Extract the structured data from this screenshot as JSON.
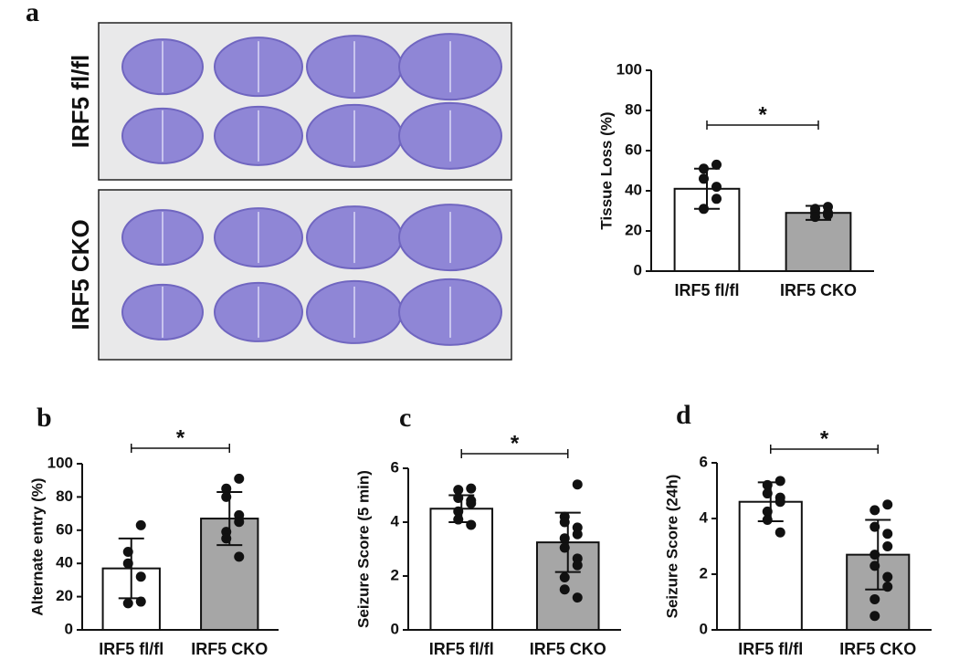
{
  "chart_data": [
    {
      "type": "bar",
      "panel": "a",
      "image_labels": [
        "IRF5 fl/fl",
        "IRF5 CKO"
      ],
      "ylabel": "Tissue Loss (%)",
      "categories": [
        "IRF5 fl/fl",
        "IRF5 CKO"
      ],
      "values": [
        41,
        29
      ],
      "errors": [
        10,
        3.5
      ],
      "points": [
        [
          53,
          51,
          46,
          42,
          36,
          31
        ],
        [
          32,
          31,
          29,
          29,
          28,
          27
        ]
      ],
      "colors": [
        "#ffffff",
        "#a6a6a6"
      ],
      "significance": "*",
      "ylim": [
        0,
        100
      ],
      "yticks": [
        0,
        20,
        40,
        60,
        80,
        100
      ]
    },
    {
      "type": "bar",
      "panel": "b",
      "ylabel": "Alternate entry (%)",
      "categories": [
        "IRF5 fl/fl",
        "IRF5 CKO"
      ],
      "values": [
        37,
        67
      ],
      "errors": [
        18,
        16
      ],
      "points": [
        [
          63,
          47,
          40,
          32,
          17,
          16
        ],
        [
          91,
          85,
          80,
          69,
          65,
          59,
          55,
          44
        ]
      ],
      "colors": [
        "#ffffff",
        "#a6a6a6"
      ],
      "significance": "*",
      "ylim": [
        0,
        100
      ],
      "yticks": [
        0,
        20,
        40,
        60,
        80,
        100
      ]
    },
    {
      "type": "bar",
      "panel": "c",
      "ylabel": "Seizure Score (5 min)",
      "categories": [
        "IRF5 fl/fl",
        "IRF5 CKO"
      ],
      "values": [
        4.5,
        3.25
      ],
      "errors": [
        0.5,
        1.1
      ],
      "points": [
        [
          5.25,
          5.2,
          4.9,
          4.8,
          4.7,
          4.4,
          4.1,
          3.9
        ],
        [
          5.4,
          4.2,
          4.0,
          3.8,
          3.55,
          3.4,
          3.05,
          2.65,
          2.4,
          1.95,
          1.5,
          1.2
        ]
      ],
      "colors": [
        "#ffffff",
        "#a6a6a6"
      ],
      "significance": "*",
      "ylim": [
        0,
        6
      ],
      "yticks": [
        0,
        2,
        4,
        6
      ]
    },
    {
      "type": "bar",
      "panel": "d",
      "ylabel": "Seizure Score (24h)",
      "categories": [
        "IRF5 fl/fl",
        "IRF5 CKO"
      ],
      "values": [
        4.6,
        2.7
      ],
      "errors": [
        0.7,
        1.25
      ],
      "points": [
        [
          5.35,
          5.2,
          4.9,
          4.75,
          4.6,
          4.25,
          3.95,
          3.5
        ],
        [
          4.5,
          4.3,
          3.7,
          3.45,
          3.0,
          2.7,
          2.3,
          1.9,
          1.55,
          1.1,
          0.5
        ]
      ],
      "colors": [
        "#ffffff",
        "#a6a6a6"
      ],
      "significance": "*",
      "ylim": [
        0,
        6
      ],
      "yticks": [
        0,
        2,
        4,
        6
      ]
    }
  ]
}
